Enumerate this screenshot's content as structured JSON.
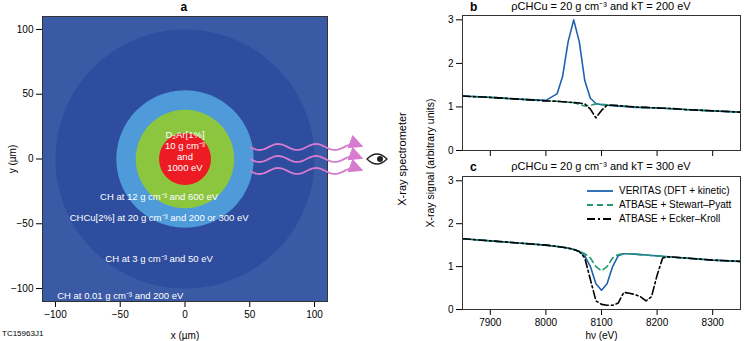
{
  "figure_code": "TC15963J1",
  "chart_data": [
    {
      "type": "concentric",
      "panel_label": "a",
      "x_label": "x (µm)",
      "y_label": "y (µm)",
      "xlim": [
        -110,
        110
      ],
      "ylim": [
        -110,
        110
      ],
      "xticks": [
        {
          "value": -100,
          "label": "−100"
        },
        {
          "value": -50,
          "label": "−50"
        },
        0,
        50,
        100
      ],
      "yticks": [
        {
          "value": -100,
          "label": "−100"
        },
        {
          "value": -50,
          "label": "−50"
        },
        0,
        50,
        100
      ],
      "regions": [
        {
          "label": "CH at 0.01 g cm⁻³ and 200 eV",
          "radius": 160,
          "color": "#3b5aa6"
        },
        {
          "label": "CH at 3 g cm⁻³ and 50 eV",
          "radius": 100,
          "color": "#2e4d9e"
        },
        {
          "label": "CHCu[2%] at 20 g cm⁻³ and 200 or 300 eV",
          "radius": 53,
          "color": "#4f9bd9"
        },
        {
          "label": "CH at 12 g cm⁻³ and 600 eV",
          "radius": 38,
          "color": "#8cc63f"
        },
        {
          "label": "D₂Ar[1%]\n10 g cm⁻³\nand\n1000 eV",
          "radius": 20,
          "color": "#ed1c24"
        }
      ],
      "annotation": "X-ray spectrometer"
    },
    {
      "type": "line",
      "panel_label": "b",
      "title": "ρCHCu = 20 g cm⁻³ and kT = 200 eV",
      "y_label": "X-ray signal (arbitrary units)",
      "xlim": [
        7850,
        8350
      ],
      "ylim": [
        0,
        3.1
      ],
      "xticks": [
        7900,
        8000,
        8100,
        8200,
        8300
      ],
      "yticks": [
        0,
        1,
        2,
        3
      ],
      "tick_labels": "y",
      "x": [
        7850,
        7900,
        7950,
        8000,
        8020,
        8030,
        8040,
        8050,
        8060,
        8070,
        8080,
        8090,
        8100,
        8110,
        8120,
        8130,
        8140,
        8150,
        8160,
        8170,
        8180,
        8190,
        8200,
        8210,
        8220,
        8250,
        8300,
        8350
      ],
      "series": [
        {
          "name": "VERITAS (DFT + kinetic)",
          "color": "#1f63b0",
          "line_style": "solid",
          "values": [
            1.25,
            1.22,
            1.18,
            1.15,
            1.3,
            1.7,
            2.5,
            3,
            2.5,
            1.6,
            1.2,
            1.08,
            1.05,
            1.04,
            1.03,
            1.02,
            1.01,
            1.0,
            0.99,
            0.99,
            0.98,
            0.98,
            0.97,
            0.97,
            0.96,
            0.94,
            0.91,
            0.88
          ]
        },
        {
          "name": "ATBASE + Stewart–Pyatt",
          "color": "#1e9a6e",
          "line_style": "dashed",
          "values": [
            1.25,
            1.22,
            1.18,
            1.14,
            1.13,
            1.12,
            1.11,
            1.1,
            1.06,
            1.02,
            1.04,
            1.07,
            1.06,
            1.05,
            1.04,
            1.03,
            1.02,
            1.01,
            1.0,
            0.99,
            0.99,
            0.98,
            0.98,
            0.97,
            0.97,
            0.94,
            0.91,
            0.88
          ]
        },
        {
          "name": "ATBASE + Ecker–Kroll",
          "color": "#000000",
          "line_style": "dashdot",
          "values": [
            1.25,
            1.22,
            1.18,
            1.14,
            1.13,
            1.12,
            1.11,
            1.1,
            1.09,
            1.07,
            0.95,
            0.75,
            0.92,
            1.04,
            1.04,
            1.03,
            1.02,
            1.01,
            1.0,
            0.99,
            0.99,
            0.98,
            0.98,
            0.97,
            0.97,
            0.94,
            0.91,
            0.88
          ]
        }
      ]
    },
    {
      "type": "line",
      "panel_label": "c",
      "title": "ρCHCu = 20 g cm⁻³ and kT = 300 eV",
      "x_label": "hν (eV)",
      "xlim": [
        7850,
        8350
      ],
      "ylim": [
        0,
        3.1
      ],
      "xticks": [
        7900,
        8000,
        8100,
        8200,
        8300
      ],
      "yticks": [
        0,
        1,
        2,
        3
      ],
      "legend": "top-right",
      "x": [
        7850,
        7900,
        7950,
        8000,
        8020,
        8030,
        8040,
        8050,
        8060,
        8070,
        8080,
        8090,
        8100,
        8110,
        8120,
        8130,
        8140,
        8150,
        8160,
        8170,
        8180,
        8190,
        8200,
        8210,
        8220,
        8250,
        8300,
        8350
      ],
      "series": [
        {
          "name": "VERITAS (DFT + kinetic)",
          "color": "#1f63b0",
          "line_style": "solid",
          "values": [
            1.65,
            1.6,
            1.55,
            1.5,
            1.47,
            1.45,
            1.43,
            1.4,
            1.35,
            1.25,
            1.0,
            0.6,
            0.45,
            0.6,
            1.0,
            1.25,
            1.3,
            1.3,
            1.29,
            1.28,
            1.27,
            1.26,
            1.25,
            1.24,
            1.23,
            1.2,
            1.15,
            1.12
          ]
        },
        {
          "name": "ATBASE + Stewart–Pyatt",
          "color": "#1e9a6e",
          "line_style": "dashed",
          "values": [
            1.65,
            1.6,
            1.55,
            1.5,
            1.47,
            1.45,
            1.43,
            1.4,
            1.36,
            1.3,
            1.2,
            1.0,
            0.9,
            1.0,
            1.2,
            1.28,
            1.3,
            1.3,
            1.29,
            1.28,
            1.27,
            1.26,
            1.25,
            1.24,
            1.23,
            1.2,
            1.15,
            1.12
          ]
        },
        {
          "name": "ATBASE + Ecker–Kroll",
          "color": "#000000",
          "line_style": "dashdot",
          "values": [
            1.65,
            1.6,
            1.55,
            1.5,
            1.47,
            1.45,
            1.43,
            1.4,
            1.35,
            1.2,
            0.7,
            0.2,
            0.12,
            0.1,
            0.1,
            0.15,
            0.4,
            0.38,
            0.35,
            0.3,
            0.2,
            0.3,
            0.8,
            1.2,
            1.23,
            1.2,
            1.15,
            1.12
          ]
        }
      ]
    }
  ]
}
